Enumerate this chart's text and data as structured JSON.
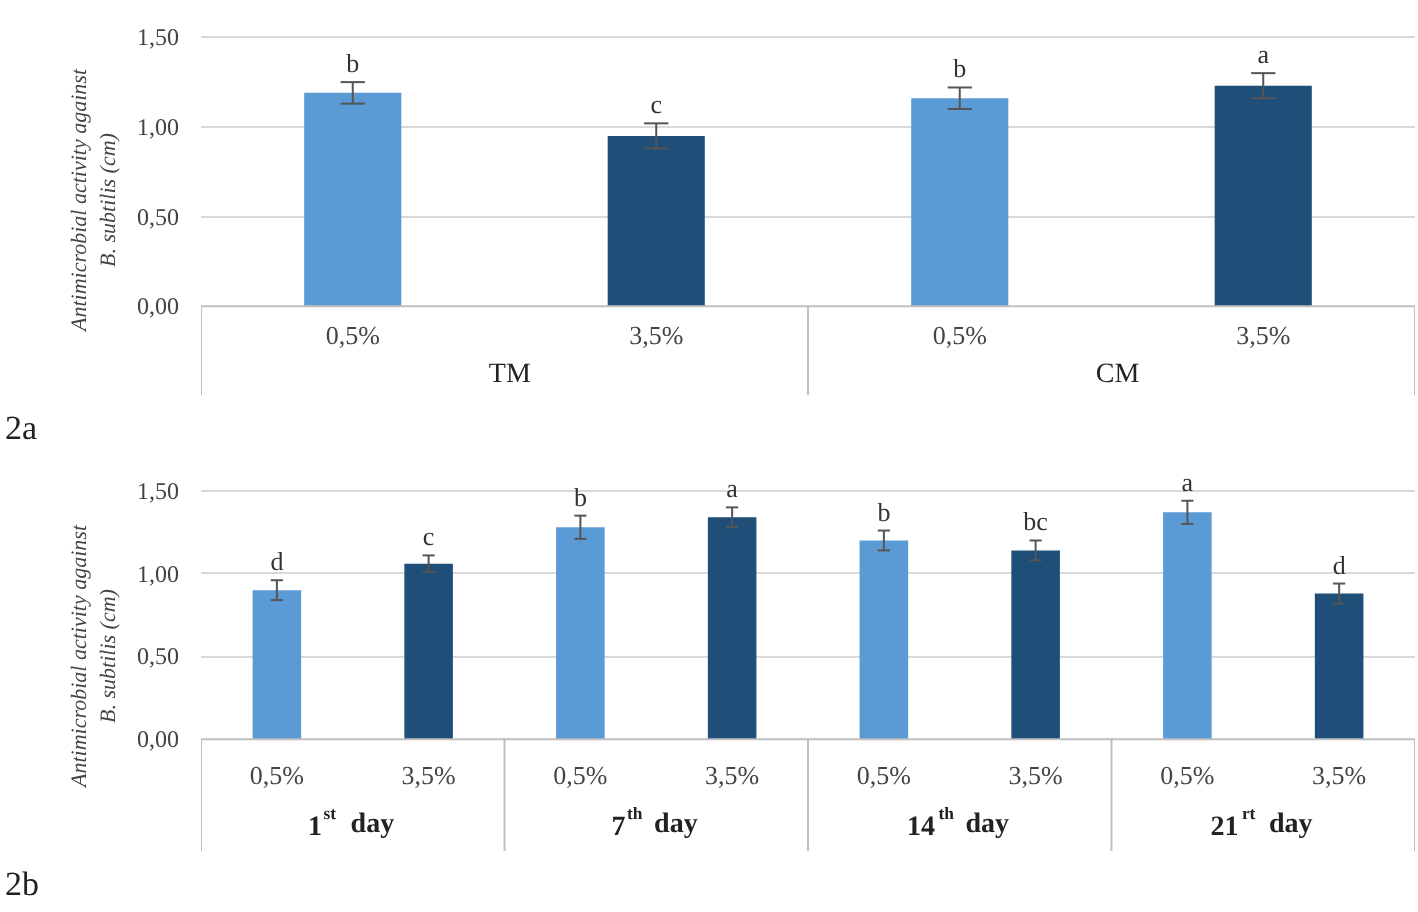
{
  "chart_data": [
    {
      "type": "bar",
      "title": "2a",
      "ylabel": "Antimicrobial activity against\nB. subtilis (cm)",
      "categories": [
        "0,5%",
        "3,5%",
        "0,5%",
        "3,5%"
      ],
      "values": [
        1.19,
        0.95,
        1.16,
        1.23
      ],
      "colors": [
        "#5b9bd5",
        "#1f4e79",
        "#5b9bd5",
        "#1f4e79"
      ],
      "errors": [
        0.06,
        0.07,
        0.06,
        0.07
      ],
      "value_labels": [
        "b",
        "c",
        "b",
        "a"
      ],
      "annotations": [
        "TM",
        "CM"
      ],
      "ylim": [
        0,
        1.5
      ],
      "yticks": [
        {
          "value": 0,
          "label": "0,00"
        },
        {
          "value": 0.5,
          "label": "0,50"
        },
        {
          "value": 1.0,
          "label": "1,00"
        },
        {
          "value": 1.5,
          "label": "1,50"
        }
      ],
      "grid": "y"
    },
    {
      "type": "bar",
      "title": "2b",
      "ylabel": "Antimicrobial activity against\nB. subtilis (cm)",
      "categories": [
        "0,5%",
        "3,5%",
        "0,5%",
        "3,5%",
        "0,5%",
        "3,5%",
        "0,5%",
        "3,5%"
      ],
      "values": [
        0.9,
        1.06,
        1.28,
        1.34,
        1.2,
        1.14,
        1.37,
        0.88
      ],
      "colors": [
        "#5b9bd5",
        "#1f4e79",
        "#5b9bd5",
        "#1f4e79",
        "#5b9bd5",
        "#1f4e79",
        "#5b9bd5",
        "#1f4e79"
      ],
      "errors": [
        0.06,
        0.05,
        0.07,
        0.06,
        0.06,
        0.06,
        0.07,
        0.06
      ],
      "value_labels": [
        "d",
        "c",
        "b",
        "a",
        "b",
        "bc",
        "a",
        "d"
      ],
      "annotations": [
        "1$^{st}$ day",
        "7$^{th}$ day",
        "14$^{th}$ day",
        "21$^{rt}$ day"
      ],
      "ylim": [
        0,
        1.5
      ],
      "yticks": [
        {
          "value": 0,
          "label": "0,00"
        },
        {
          "value": 0.5,
          "label": "0,50"
        },
        {
          "value": 1.0,
          "label": "1,00"
        },
        {
          "value": 1.5,
          "label": "1,50"
        }
      ],
      "grid": "y"
    }
  ]
}
